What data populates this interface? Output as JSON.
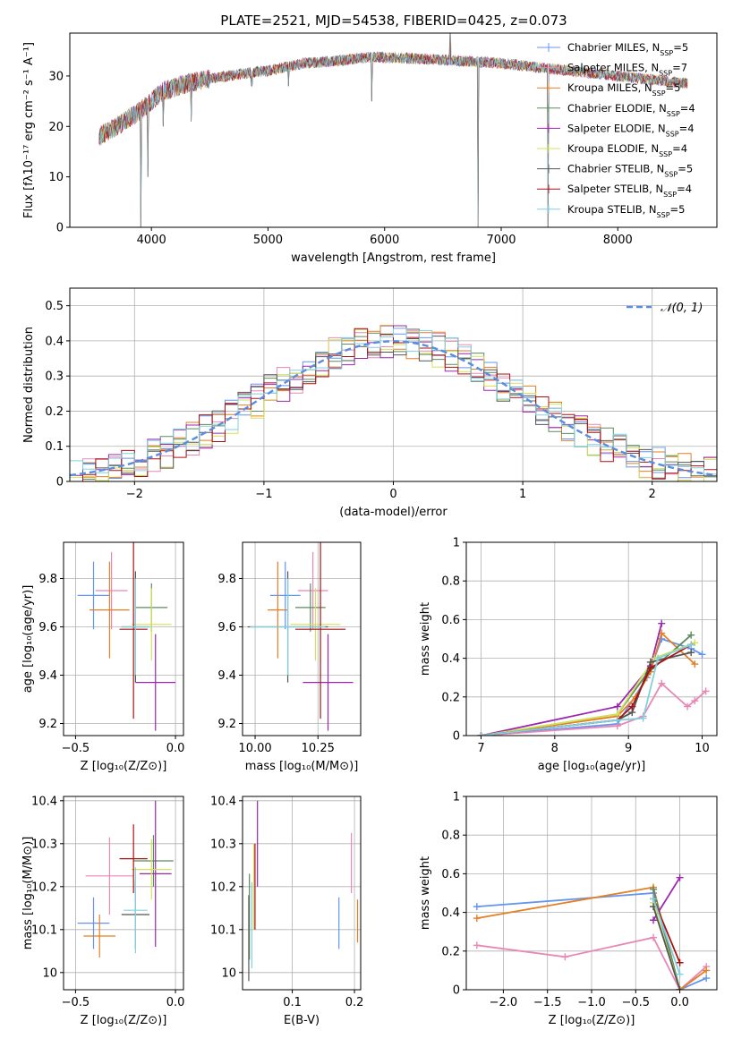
{
  "figure": {
    "title": "PLATE=2521, MJD=54538, FIBERID=0425, z=0.073"
  },
  "colors": {
    "Chabrier MILES": "#6495ed",
    "Salpeter MILES": "#e888b6",
    "Kroupa MILES": "#e67e22",
    "Chabrier ELODIE": "#5e8a5e",
    "Salpeter ELODIE": "#9b27b0",
    "Kroupa ELODIE": "#d4e157",
    "Chabrier STELIB": "#555555",
    "Salpeter STELIB": "#aa1111",
    "Kroupa STELIB": "#80d0e0"
  },
  "chart_data": [
    {
      "id": "spectrum",
      "type": "line",
      "xlabel": "wavelength [Angstrom, rest frame]",
      "ylabel": "Flux [fλ10⁻¹⁷ erg cm⁻² s⁻¹ A⁻¹]",
      "xlim": [
        3300,
        8850
      ],
      "ylim": [
        0,
        38.5
      ],
      "xticks": [
        4000,
        5000,
        6000,
        7000,
        8000
      ],
      "yticks": [
        0,
        10,
        20,
        30
      ],
      "grid": false,
      "legend_position": "top-right",
      "legend": [
        {
          "name": "Chabrier MILES",
          "base": "Chabrier MILES, N",
          "sub": "SSP",
          "tail": "=5"
        },
        {
          "name": "Salpeter MILES",
          "base": "Salpeter MILES, N",
          "sub": "SSP",
          "tail": "=7"
        },
        {
          "name": "Kroupa MILES",
          "base": "Kroupa MILES, N",
          "sub": "SSP",
          "tail": "=5"
        },
        {
          "name": "Chabrier ELODIE",
          "base": "Chabrier ELODIE, N",
          "sub": "SSP",
          "tail": "=4"
        },
        {
          "name": "Salpeter ELODIE",
          "base": "Salpeter ELODIE, N",
          "sub": "SSP",
          "tail": "=4"
        },
        {
          "name": "Kroupa ELODIE",
          "base": "Kroupa ELODIE, N",
          "sub": "SSP",
          "tail": "=4"
        },
        {
          "name": "Chabrier STELIB",
          "base": "Chabrier STELIB, N",
          "sub": "SSP",
          "tail": "=5"
        },
        {
          "name": "Salpeter STELIB",
          "base": "Salpeter STELIB, N",
          "sub": "SSP",
          "tail": "=4"
        },
        {
          "name": "Kroupa STELIB",
          "base": "Kroupa STELIB, N",
          "sub": "SSP",
          "tail": "=5"
        }
      ],
      "continuum": [
        [
          3550,
          18
        ],
        [
          3700,
          20
        ],
        [
          3900,
          23
        ],
        [
          4100,
          27
        ],
        [
          4300,
          28.5
        ],
        [
          4500,
          29.5
        ],
        [
          4800,
          30.5
        ],
        [
          5000,
          31
        ],
        [
          5300,
          32.5
        ],
        [
          5600,
          33
        ],
        [
          5900,
          33.8
        ],
        [
          6200,
          33.5
        ],
        [
          6500,
          33.2
        ],
        [
          6800,
          32.8
        ],
        [
          7000,
          32.5
        ],
        [
          7200,
          32
        ],
        [
          7400,
          31.5
        ],
        [
          7800,
          30.5
        ],
        [
          8200,
          29.5
        ],
        [
          8600,
          28.5
        ]
      ],
      "spikes": [
        [
          3910,
          0
        ],
        [
          3970,
          10
        ],
        [
          4102,
          20
        ],
        [
          4340,
          21
        ],
        [
          4861,
          28
        ],
        [
          5175,
          28
        ],
        [
          5890,
          25
        ],
        [
          6563,
          38.5
        ],
        [
          6800,
          0
        ],
        [
          7400,
          0
        ]
      ]
    },
    {
      "id": "residual-distribution",
      "type": "line",
      "xlabel": "(data-model)/error",
      "ylabel": "Normed distribution",
      "xlim": [
        -2.5,
        2.5
      ],
      "ylim": [
        0,
        0.55
      ],
      "xticks": [
        -2,
        -1,
        0,
        1,
        2
      ],
      "yticks": [
        0.0,
        0.1,
        0.2,
        0.3,
        0.4,
        0.5
      ],
      "grid": true,
      "legend_position": "top-right",
      "reference": {
        "name": "𝒩(0, 1)",
        "type": "gaussian",
        "mean": 0,
        "sigma": 1
      },
      "bin_width": 0.1,
      "bin_range": [
        -2.6,
        2.6
      ]
    },
    {
      "id": "age-vs-Z",
      "type": "scatter",
      "xlabel": "Z [log₁₀(Z/Z⊙)]",
      "ylabel": "age  [log₁₀(age/yr)]",
      "xlim": [
        -0.56,
        0.04
      ],
      "ylim": [
        9.15,
        9.95
      ],
      "xticks": [
        -0.5,
        0.0
      ],
      "xticklabels": [
        "−0.5",
        "0.0"
      ],
      "yticks": [
        9.2,
        9.4,
        9.6,
        9.8
      ],
      "grid": true,
      "points": [
        {
          "name": "Chabrier MILES",
          "x": -0.41,
          "xerr": 0.08,
          "y": 9.73,
          "yerr": 0.14
        },
        {
          "name": "Salpeter MILES",
          "x": -0.32,
          "xerr": 0.08,
          "y": 9.75,
          "yerr": 0.16
        },
        {
          "name": "Kroupa MILES",
          "x": -0.33,
          "xerr": 0.1,
          "y": 9.67,
          "yerr": 0.2
        },
        {
          "name": "Chabrier ELODIE",
          "x": -0.12,
          "xerr": 0.08,
          "y": 9.68,
          "yerr": 0.1
        },
        {
          "name": "Salpeter ELODIE",
          "x": -0.1,
          "xerr": 0.1,
          "y": 9.37,
          "yerr": 0.2
        },
        {
          "name": "Kroupa ELODIE",
          "x": -0.12,
          "xerr": 0.1,
          "y": 9.61,
          "yerr": 0.15
        },
        {
          "name": "Chabrier STELIB",
          "x": -0.2,
          "xerr": 0.07,
          "y": 9.6,
          "yerr": 0.23
        },
        {
          "name": "Salpeter STELIB",
          "x": -0.21,
          "xerr": 0.07,
          "y": 9.59,
          "yerr": 0.37
        },
        {
          "name": "Kroupa STELIB",
          "x": -0.2,
          "xerr": 0.07,
          "y": 9.6,
          "yerr": 0.2
        }
      ]
    },
    {
      "id": "age-vs-mass",
      "type": "scatter",
      "xlabel": "mass [log₁₀(M/M⊙)]",
      "ylabel": "",
      "xlim": [
        9.95,
        10.42
      ],
      "ylim": [
        9.15,
        9.95
      ],
      "xticks": [
        10.0,
        10.25
      ],
      "xticklabels": [
        "10.00",
        "10.25"
      ],
      "yticks": [
        9.2,
        9.4,
        9.6,
        9.8
      ],
      "grid": true,
      "points": [
        {
          "name": "Chabrier MILES",
          "x": 10.12,
          "xerr": 0.06,
          "y": 9.73,
          "yerr": 0.14
        },
        {
          "name": "Salpeter MILES",
          "x": 10.23,
          "xerr": 0.06,
          "y": 9.75,
          "yerr": 0.16
        },
        {
          "name": "Kroupa MILES",
          "x": 10.09,
          "xerr": 0.04,
          "y": 9.67,
          "yerr": 0.2
        },
        {
          "name": "Chabrier ELODIE",
          "x": 10.22,
          "xerr": 0.06,
          "y": 9.68,
          "yerr": 0.1
        },
        {
          "name": "Salpeter ELODIE",
          "x": 10.29,
          "xerr": 0.1,
          "y": 9.37,
          "yerr": 0.2
        },
        {
          "name": "Kroupa ELODIE",
          "x": 10.24,
          "xerr": 0.1,
          "y": 9.61,
          "yerr": 0.15
        },
        {
          "name": "Chabrier STELIB",
          "x": 10.13,
          "xerr": 0.16,
          "y": 9.6,
          "yerr": 0.23
        },
        {
          "name": "Salpeter STELIB",
          "x": 10.26,
          "xerr": 0.1,
          "y": 9.59,
          "yerr": 0.37
        },
        {
          "name": "Kroupa STELIB",
          "x": 10.13,
          "xerr": 0.15,
          "y": 9.6,
          "yerr": 0.2
        }
      ]
    },
    {
      "id": "mass-weight-vs-age",
      "type": "line",
      "xlabel": "age  [log₁₀(age/yr)]",
      "ylabel": "mass weight",
      "xlim": [
        6.8,
        10.2
      ],
      "ylim": [
        0,
        1
      ],
      "xticks": [
        7,
        8,
        9,
        10
      ],
      "yticks": [
        0.0,
        0.2,
        0.4,
        0.6,
        0.8,
        1.0
      ],
      "grid": true,
      "series": [
        {
          "name": "Chabrier MILES",
          "x": [
            7.0,
            8.85,
            9.25,
            9.45,
            9.85,
            10.0
          ],
          "y": [
            0.0,
            0.06,
            0.3,
            0.5,
            0.45,
            0.42
          ]
        },
        {
          "name": "Salpeter MILES",
          "x": [
            7.0,
            8.85,
            9.2,
            9.45,
            9.8,
            9.9,
            10.05
          ],
          "y": [
            0.0,
            0.05,
            0.1,
            0.27,
            0.15,
            0.18,
            0.23
          ]
        },
        {
          "name": "Kroupa MILES",
          "x": [
            7.0,
            8.85,
            9.1,
            9.3,
            9.45,
            9.9
          ],
          "y": [
            0.0,
            0.1,
            0.2,
            0.33,
            0.53,
            0.37
          ]
        },
        {
          "name": "Chabrier ELODIE",
          "x": [
            7.0,
            8.85,
            9.25,
            9.85
          ],
          "y": [
            0.0,
            0.11,
            0.32,
            0.52
          ]
        },
        {
          "name": "Salpeter ELODIE",
          "x": [
            7.0,
            8.85,
            9.3,
            9.45
          ],
          "y": [
            0.0,
            0.15,
            0.36,
            0.58
          ]
        },
        {
          "name": "Kroupa ELODIE",
          "x": [
            7.0,
            8.85,
            9.35,
            9.9
          ],
          "y": [
            0.0,
            0.11,
            0.4,
            0.48
          ]
        },
        {
          "name": "Chabrier STELIB",
          "x": [
            7.0,
            8.85,
            9.05,
            9.3,
            9.85
          ],
          "y": [
            0.0,
            0.08,
            0.12,
            0.38,
            0.43
          ]
        },
        {
          "name": "Salpeter STELIB",
          "x": [
            7.0,
            8.85,
            9.05,
            9.3,
            9.85
          ],
          "y": [
            0.0,
            0.08,
            0.15,
            0.35,
            0.47
          ]
        },
        {
          "name": "Kroupa STELIB",
          "x": [
            7.0,
            8.85,
            9.2,
            9.4,
            9.85
          ],
          "y": [
            0.0,
            0.08,
            0.09,
            0.4,
            0.47
          ]
        }
      ]
    },
    {
      "id": "mass-vs-Z",
      "type": "scatter",
      "xlabel": "Z [log₁₀(Z/Z⊙)]",
      "ylabel": "mass [log₁₀(M/M⊙)]",
      "xlim": [
        -0.56,
        0.04
      ],
      "ylim": [
        9.96,
        10.41
      ],
      "xticks": [
        -0.5,
        0.0
      ],
      "xticklabels": [
        "−0.5",
        "0.0"
      ],
      "yticks": [
        10.0,
        10.1,
        10.2,
        10.3,
        10.4
      ],
      "grid": true,
      "points": [
        {
          "name": "Chabrier MILES",
          "x": -0.41,
          "xerr": 0.08,
          "y": 10.115,
          "yerr": 0.06
        },
        {
          "name": "Salpeter MILES",
          "x": -0.33,
          "xerr": 0.12,
          "y": 10.225,
          "yerr": 0.09
        },
        {
          "name": "Kroupa MILES",
          "x": -0.38,
          "xerr": 0.08,
          "y": 10.085,
          "yerr": 0.05
        },
        {
          "name": "Chabrier ELODIE",
          "x": -0.11,
          "xerr": 0.1,
          "y": 10.26,
          "yerr": 0.06
        },
        {
          "name": "Salpeter ELODIE",
          "x": -0.1,
          "xerr": 0.08,
          "y": 10.23,
          "yerr": 0.17
        },
        {
          "name": "Kroupa ELODIE",
          "x": -0.12,
          "xerr": 0.1,
          "y": 10.24,
          "yerr": 0.07
        },
        {
          "name": "Chabrier STELIB",
          "x": -0.2,
          "xerr": 0.07,
          "y": 10.135,
          "yerr": 0.08
        },
        {
          "name": "Salpeter STELIB",
          "x": -0.21,
          "xerr": 0.07,
          "y": 10.265,
          "yerr": 0.08
        },
        {
          "name": "Kroupa STELIB",
          "x": -0.2,
          "xerr": 0.06,
          "y": 10.145,
          "yerr": 0.1
        }
      ]
    },
    {
      "id": "mass-vs-EBV",
      "type": "scatter",
      "xlabel": "E(B-V)",
      "ylabel": "",
      "xlim": [
        0.02,
        0.21
      ],
      "ylim": [
        9.96,
        10.41
      ],
      "xticks": [
        0.1,
        0.2
      ],
      "xticklabels": [
        "0.1",
        "0.2"
      ],
      "yticks": [
        10.0,
        10.1,
        10.2,
        10.3,
        10.4
      ],
      "grid": true,
      "points": [
        {
          "name": "Chabrier MILES",
          "x": 0.175,
          "xerr": 0,
          "y": 10.115,
          "yerr": 0.06
        },
        {
          "name": "Salpeter MILES",
          "x": 0.195,
          "xerr": 0,
          "y": 10.255,
          "yerr": 0.07
        },
        {
          "name": "Kroupa MILES",
          "x": 0.205,
          "xerr": 0,
          "y": 10.12,
          "yerr": 0.05
        },
        {
          "name": "Chabrier ELODIE",
          "x": 0.031,
          "xerr": 0,
          "y": 10.13,
          "yerr": 0.1
        },
        {
          "name": "Salpeter ELODIE",
          "x": 0.044,
          "xerr": 0,
          "y": 10.3,
          "yerr": 0.1
        },
        {
          "name": "Kroupa ELODIE",
          "x": 0.038,
          "xerr": 0,
          "y": 10.2,
          "yerr": 0.1
        },
        {
          "name": "Chabrier STELIB",
          "x": 0.03,
          "xerr": 0,
          "y": 10.08,
          "yerr": 0.1
        },
        {
          "name": "Salpeter STELIB",
          "x": 0.04,
          "xerr": 0,
          "y": 10.2,
          "yerr": 0.1
        },
        {
          "name": "Kroupa STELIB",
          "x": 0.035,
          "xerr": 0,
          "y": 10.11,
          "yerr": 0.1
        }
      ]
    },
    {
      "id": "mass-weight-vs-Z",
      "type": "line",
      "xlabel": "Z [log₁₀(Z/Z⊙)]",
      "ylabel": "mass weight",
      "xlim": [
        -2.42,
        0.42
      ],
      "ylim": [
        0,
        1
      ],
      "xticks": [
        -2.0,
        -1.5,
        -1.0,
        -0.5,
        0.0
      ],
      "xticklabels": [
        "−2.0",
        "−1.5",
        "−1.0",
        "−0.5",
        "0.0"
      ],
      "yticks": [
        0.0,
        0.2,
        0.4,
        0.6,
        0.8,
        1.0
      ],
      "grid": true,
      "series": [
        {
          "name": "Chabrier MILES",
          "x": [
            -2.3,
            -0.3,
            0.0,
            0.3
          ],
          "y": [
            0.43,
            0.5,
            0.0,
            0.06
          ]
        },
        {
          "name": "Salpeter MILES",
          "x": [
            -2.3,
            -1.3,
            -0.3,
            0.0,
            0.3
          ],
          "y": [
            0.23,
            0.17,
            0.27,
            0.0,
            0.12
          ]
        },
        {
          "name": "Kroupa MILES",
          "x": [
            -2.3,
            -0.3,
            0.0,
            0.3
          ],
          "y": [
            0.37,
            0.53,
            0.0,
            0.1
          ]
        },
        {
          "name": "Chabrier ELODIE",
          "x": [
            -0.3,
            0.0
          ],
          "y": [
            0.52,
            0.0
          ]
        },
        {
          "name": "Salpeter ELODIE",
          "x": [
            -0.3,
            0.0
          ],
          "y": [
            0.36,
            0.58
          ]
        },
        {
          "name": "Kroupa ELODIE",
          "x": [
            -0.3,
            0.0
          ],
          "y": [
            0.45,
            0.0
          ]
        },
        {
          "name": "Chabrier STELIB",
          "x": [
            -0.3,
            0.0
          ],
          "y": [
            0.43,
            0.0
          ]
        },
        {
          "name": "Salpeter STELIB",
          "x": [
            -0.3,
            0.0
          ],
          "y": [
            0.47,
            0.14
          ]
        },
        {
          "name": "Kroupa STELIB",
          "x": [
            -0.3,
            0.0
          ],
          "y": [
            0.47,
            0.08
          ]
        }
      ]
    }
  ]
}
